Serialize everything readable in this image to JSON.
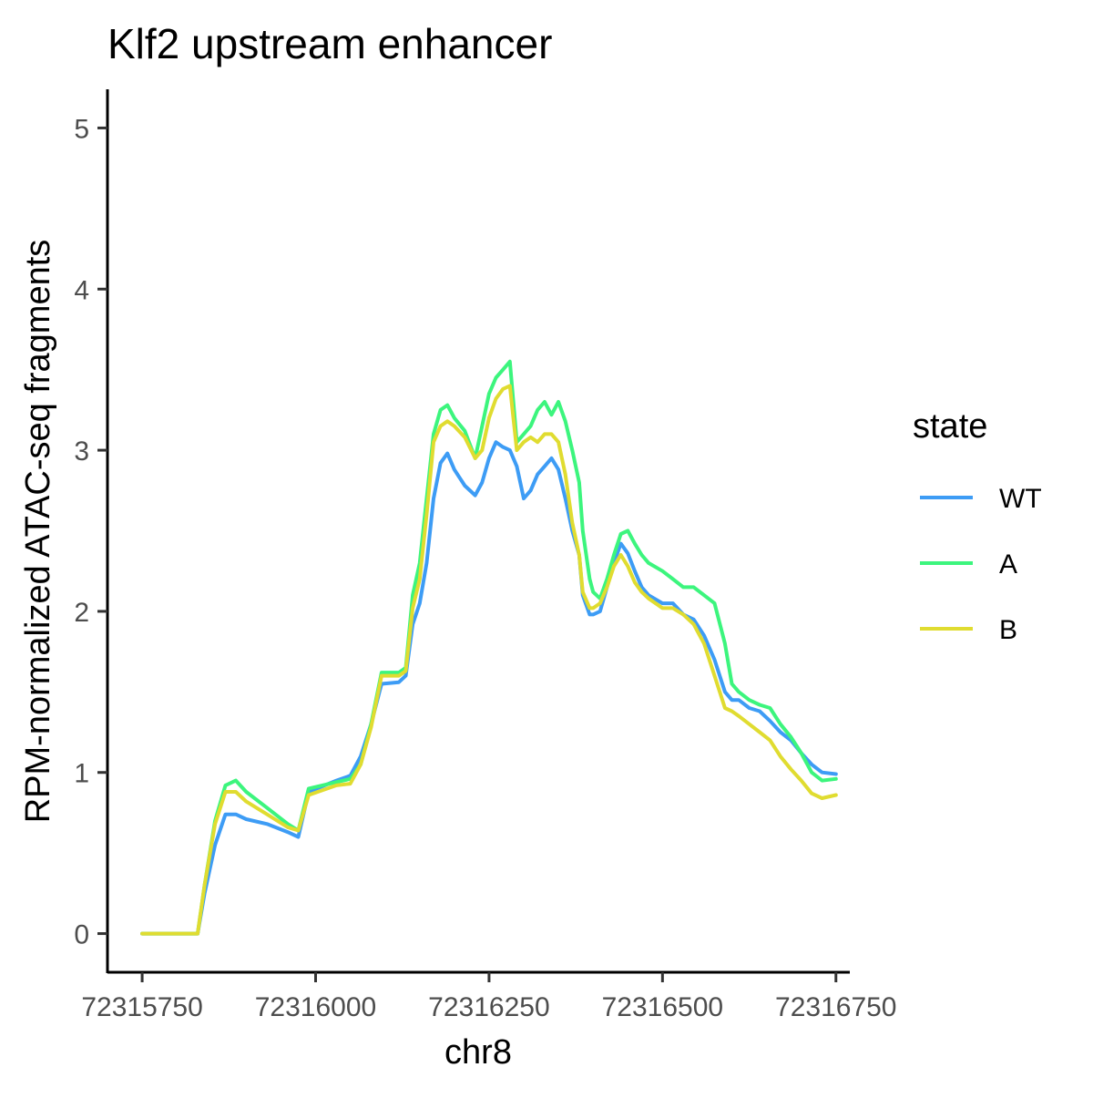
{
  "chart_data": {
    "type": "line",
    "title": "Klf2 upstream enhancer",
    "xlabel": "chr8",
    "ylabel": "RPM-normalized ATAC-seq fragments",
    "xlim": [
      72315700,
      72316770
    ],
    "ylim": [
      -0.24,
      5.24
    ],
    "xticks": [
      72315750,
      72316000,
      72316250,
      72316500,
      72316750
    ],
    "xtick_labels": [
      "72315750",
      "72316000",
      "72316250",
      "72316500",
      "72316750"
    ],
    "yticks": [
      0,
      1,
      2,
      3,
      4,
      5
    ],
    "ytick_labels": [
      "0",
      "1",
      "2",
      "3",
      "4",
      "5"
    ],
    "grid": false,
    "legend": {
      "title": "state",
      "position": "right"
    },
    "series": [
      {
        "name": "WT",
        "color": "#3d9cf5",
        "x": [
          72315750,
          72315830,
          72315840,
          72315855,
          72315870,
          72315885,
          72315900,
          72315930,
          72315960,
          72315975,
          72315990,
          72316030,
          72316050,
          72316065,
          72316080,
          72316095,
          72316120,
          72316130,
          72316140,
          72316150,
          72316160,
          72316170,
          72316180,
          72316190,
          72316200,
          72316215,
          72316230,
          72316240,
          72316250,
          72316260,
          72316270,
          72316280,
          72316290,
          72316300,
          72316310,
          72316320,
          72316330,
          72316340,
          72316350,
          72316360,
          72316370,
          72316380,
          72316385,
          72316395,
          72316400,
          72316410,
          72316420,
          72316430,
          72316440,
          72316450,
          72316460,
          72316470,
          72316480,
          72316500,
          72316515,
          72316530,
          72316545,
          72316560,
          72316575,
          72316590,
          72316600,
          72316610,
          72316625,
          72316640,
          72316655,
          72316670,
          72316685,
          72316700,
          72316715,
          72316730,
          72316750
        ],
        "y": [
          0.0,
          0.0,
          0.25,
          0.55,
          0.74,
          0.74,
          0.71,
          0.68,
          0.63,
          0.6,
          0.88,
          0.95,
          0.98,
          1.1,
          1.3,
          1.55,
          1.56,
          1.6,
          1.92,
          2.05,
          2.3,
          2.7,
          2.92,
          2.98,
          2.88,
          2.78,
          2.72,
          2.8,
          2.95,
          3.05,
          3.02,
          3.0,
          2.9,
          2.7,
          2.75,
          2.85,
          2.9,
          2.95,
          2.88,
          2.7,
          2.5,
          2.35,
          2.1,
          1.98,
          1.98,
          2.0,
          2.15,
          2.3,
          2.42,
          2.36,
          2.25,
          2.15,
          2.1,
          2.05,
          2.05,
          1.98,
          1.95,
          1.85,
          1.7,
          1.5,
          1.45,
          1.45,
          1.4,
          1.38,
          1.32,
          1.25,
          1.2,
          1.12,
          1.05,
          1.0,
          0.99
        ]
      },
      {
        "name": "A",
        "color": "#3cf57d",
        "x": [
          72315750,
          72315830,
          72315840,
          72315855,
          72315870,
          72315885,
          72315900,
          72315930,
          72315960,
          72315975,
          72315990,
          72316030,
          72316050,
          72316065,
          72316080,
          72316095,
          72316120,
          72316130,
          72316140,
          72316150,
          72316160,
          72316170,
          72316180,
          72316190,
          72316200,
          72316215,
          72316230,
          72316240,
          72316250,
          72316260,
          72316270,
          72316280,
          72316290,
          72316300,
          72316310,
          72316320,
          72316330,
          72316340,
          72316350,
          72316360,
          72316370,
          72316380,
          72316385,
          72316395,
          72316400,
          72316410,
          72316420,
          72316430,
          72316440,
          72316450,
          72316460,
          72316470,
          72316480,
          72316500,
          72316515,
          72316530,
          72316545,
          72316560,
          72316575,
          72316590,
          72316600,
          72316610,
          72316625,
          72316640,
          72316655,
          72316670,
          72316685,
          72316700,
          72316715,
          72316730,
          72316750
        ],
        "y": [
          0.0,
          0.0,
          0.3,
          0.7,
          0.92,
          0.95,
          0.88,
          0.78,
          0.68,
          0.64,
          0.9,
          0.94,
          0.96,
          1.05,
          1.3,
          1.62,
          1.62,
          1.65,
          2.1,
          2.3,
          2.7,
          3.1,
          3.25,
          3.28,
          3.2,
          3.12,
          2.95,
          3.15,
          3.35,
          3.45,
          3.5,
          3.55,
          3.05,
          3.1,
          3.15,
          3.25,
          3.3,
          3.22,
          3.3,
          3.18,
          3.0,
          2.8,
          2.5,
          2.2,
          2.12,
          2.08,
          2.2,
          2.35,
          2.48,
          2.5,
          2.42,
          2.35,
          2.3,
          2.25,
          2.2,
          2.15,
          2.15,
          2.1,
          2.05,
          1.8,
          1.55,
          1.5,
          1.45,
          1.42,
          1.4,
          1.3,
          1.22,
          1.12,
          1.0,
          0.95,
          0.96
        ]
      },
      {
        "name": "B",
        "color": "#e0dc30",
        "x": [
          72315750,
          72315830,
          72315840,
          72315855,
          72315870,
          72315885,
          72315900,
          72315930,
          72315960,
          72315975,
          72315990,
          72316030,
          72316050,
          72316065,
          72316080,
          72316095,
          72316120,
          72316130,
          72316140,
          72316150,
          72316160,
          72316170,
          72316180,
          72316190,
          72316200,
          72316215,
          72316230,
          72316240,
          72316250,
          72316260,
          72316270,
          72316280,
          72316290,
          72316300,
          72316310,
          72316320,
          72316330,
          72316340,
          72316350,
          72316360,
          72316370,
          72316380,
          72316385,
          72316395,
          72316400,
          72316410,
          72316420,
          72316430,
          72316440,
          72316450,
          72316460,
          72316470,
          72316480,
          72316500,
          72316515,
          72316530,
          72316545,
          72316560,
          72316575,
          72316590,
          72316600,
          72316610,
          72316625,
          72316640,
          72316655,
          72316670,
          72316685,
          72316700,
          72316715,
          72316730,
          72316750
        ],
        "y": [
          0.0,
          0.0,
          0.3,
          0.68,
          0.88,
          0.88,
          0.82,
          0.74,
          0.66,
          0.64,
          0.86,
          0.92,
          0.93,
          1.05,
          1.28,
          1.6,
          1.6,
          1.63,
          2.02,
          2.2,
          2.6,
          3.05,
          3.15,
          3.18,
          3.15,
          3.08,
          2.95,
          3.0,
          3.2,
          3.32,
          3.38,
          3.4,
          3.0,
          3.05,
          3.08,
          3.05,
          3.1,
          3.1,
          3.05,
          2.85,
          2.55,
          2.35,
          2.12,
          2.02,
          2.02,
          2.05,
          2.15,
          2.28,
          2.35,
          2.28,
          2.18,
          2.12,
          2.08,
          2.02,
          2.02,
          1.98,
          1.92,
          1.8,
          1.6,
          1.4,
          1.38,
          1.35,
          1.3,
          1.25,
          1.2,
          1.1,
          1.02,
          0.95,
          0.87,
          0.84,
          0.86
        ]
      }
    ]
  }
}
